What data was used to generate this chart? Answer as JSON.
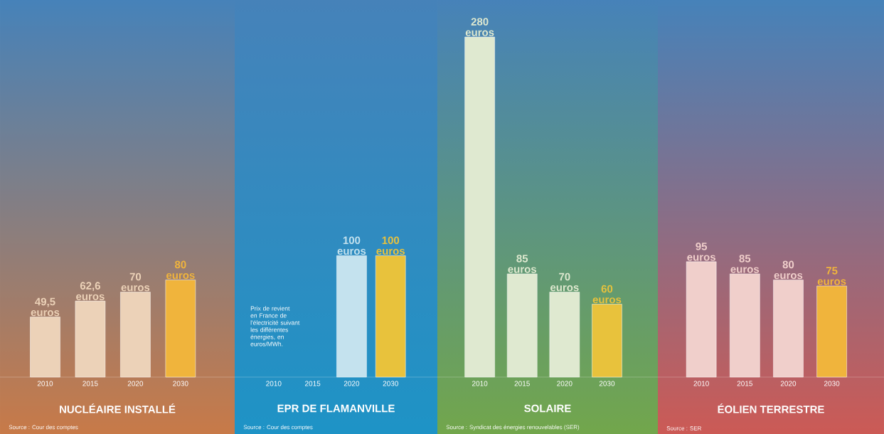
{
  "chart_data": [
    {
      "type": "bar",
      "title": "NUCLÉAIRE INSTALLÉ",
      "categories": [
        "2010",
        "2015",
        "2020",
        "2030"
      ],
      "values": [
        49.5,
        62.6,
        70,
        80
      ],
      "value_labels": [
        "49,5 euros",
        "62,6 euros",
        "70 euros",
        "80 euros"
      ],
      "colors": [
        "#ecd2b8",
        "#ecd2b8",
        "#ecd2b8",
        "#f0b43c"
      ],
      "annotations": [
        "Source : Cour des comptes"
      ]
    },
    {
      "type": "bar",
      "title": "EPR DE FLAMANVILLE",
      "categories": [
        "2010",
        "2015",
        "2020",
        "2030"
      ],
      "values": [
        null,
        null,
        100,
        100
      ],
      "value_labels": [
        null,
        null,
        "100 euros",
        "100 euros"
      ],
      "colors": [
        "#c4e2ee",
        "#c4e2ee",
        "#c4e2ee",
        "#e8c23c"
      ],
      "annotations": [
        "Prix de revient en France de l'électricité suivant les différentes énergies, en euros/MWh.",
        "Source : Cour des comptes"
      ]
    },
    {
      "type": "bar",
      "title": "SOLAIRE",
      "categories": [
        "2010",
        "2015",
        "2020",
        "2030"
      ],
      "values": [
        280,
        85,
        70,
        60
      ],
      "value_labels": [
        "280 euros",
        "85 euros",
        "70 euros",
        "60 euros"
      ],
      "colors": [
        "#dfe9d0",
        "#dfe9d0",
        "#dfe9d0",
        "#e8c23c"
      ],
      "annotations": [
        "Source : Syndicat des énergies renouvelables (SER)"
      ]
    },
    {
      "type": "bar",
      "title": "ÉOLIEN TERRESTRE",
      "categories": [
        "2010",
        "2015",
        "2020",
        "2030"
      ],
      "values": [
        95,
        85,
        80,
        75
      ],
      "value_labels": [
        "95 euros",
        "85 euros",
        "80 euros",
        "75 euros"
      ],
      "colors": [
        "#f0cfcb",
        "#f0cfcb",
        "#f0cfcb",
        "#f0b43c"
      ],
      "annotations": [
        "Source : SER"
      ]
    }
  ]
}
